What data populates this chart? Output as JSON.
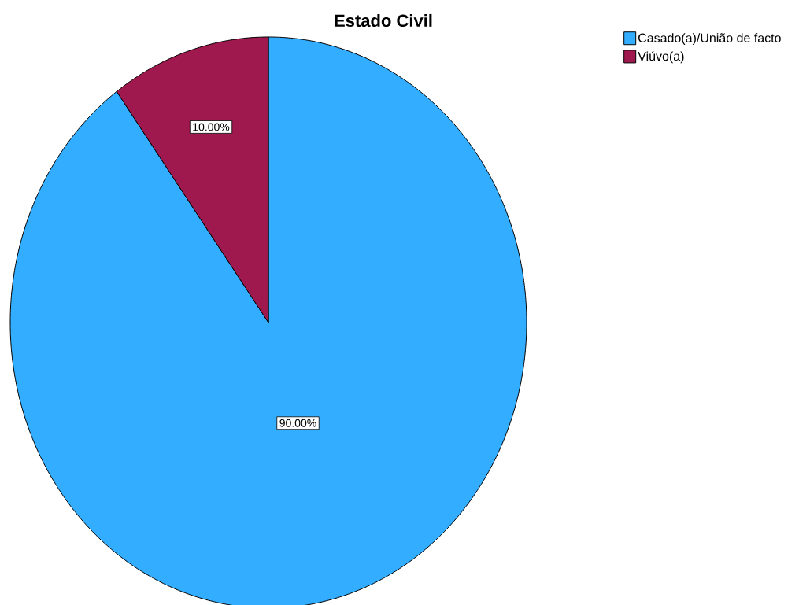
{
  "chart_data": {
    "type": "pie",
    "title": "Estado Civil",
    "categories": [
      "Casado(a)/União de facto",
      "Viúvo(a)"
    ],
    "values": [
      90,
      10
    ],
    "colors": [
      "#32adff",
      "#a0194e"
    ],
    "value_labels": [
      "90.00%",
      "10.00%"
    ],
    "legend": "top right"
  }
}
